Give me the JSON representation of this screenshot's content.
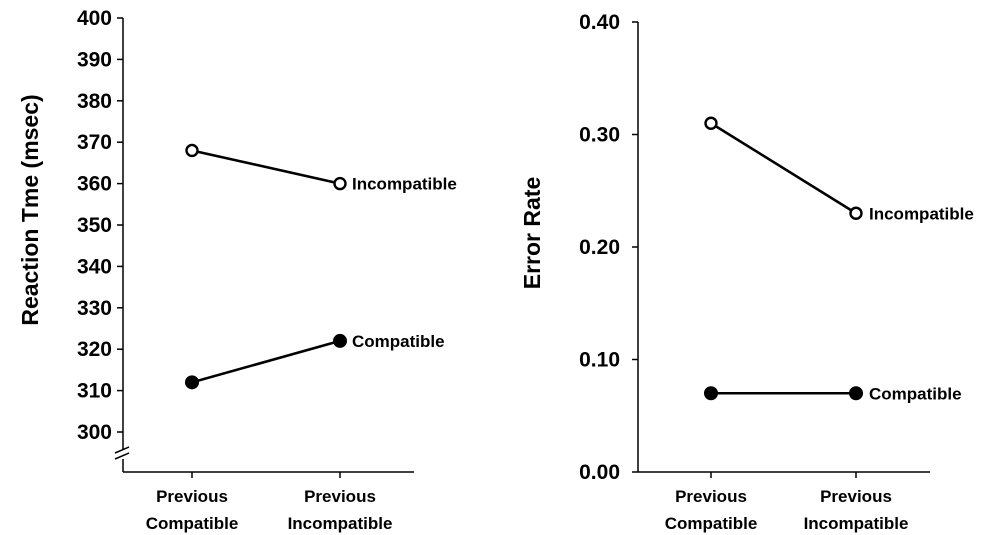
{
  "chart_data": [
    {
      "type": "line",
      "categories": [
        "Previous\nCompatible",
        "Previous\nIncompatible"
      ],
      "ylabel": "Reaction Tme (msec)",
      "xlabel": "",
      "ylim": [
        300,
        400
      ],
      "yticks": [
        "300",
        "310",
        "320",
        "330",
        "340",
        "350",
        "360",
        "370",
        "380",
        "390",
        "400"
      ],
      "axis_break": true,
      "grid": false,
      "series": [
        {
          "name": "Incompatible",
          "values": [
            368,
            360
          ],
          "marker": "open-circle"
        },
        {
          "name": "Compatible",
          "values": [
            312,
            322
          ],
          "marker": "filled-circle"
        }
      ]
    },
    {
      "type": "line",
      "categories": [
        "Previous\nCompatible",
        "Previous\nIncompatible"
      ],
      "ylabel": "Error Rate",
      "xlabel": "",
      "ylim": [
        0.0,
        0.4
      ],
      "yticks": [
        "0.00",
        "0.10",
        "0.20",
        "0.30",
        "0.40"
      ],
      "axis_break": false,
      "grid": false,
      "series": [
        {
          "name": "Incompatible",
          "values": [
            0.31,
            0.23
          ],
          "marker": "open-circle"
        },
        {
          "name": "Compatible",
          "values": [
            0.07,
            0.07
          ],
          "marker": "filled-circle"
        }
      ]
    }
  ]
}
